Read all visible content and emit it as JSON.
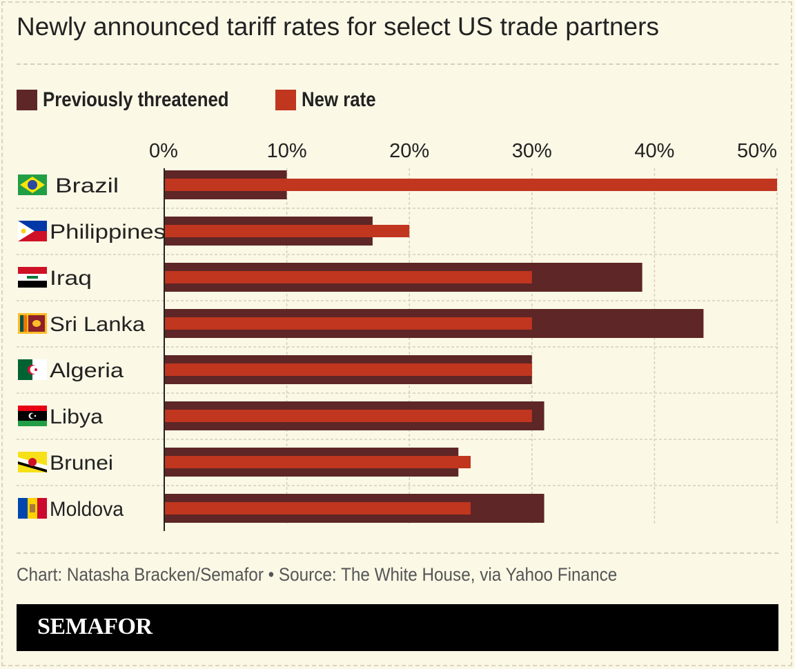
{
  "title": "Newly announced tariff rates for select US trade partners",
  "legend": {
    "previous_label": "Previously threatened",
    "new_label": "New rate"
  },
  "colors": {
    "background": "#fbf8e6",
    "previous": "#5e2626",
    "new": "#c0361f",
    "grid": "#d3cfbb",
    "axis": "#222222"
  },
  "credit": "Chart: Natasha Bracken/Semafor • Source: The White House, via Yahoo Finance",
  "footer": {
    "logo": "SEMAFOR"
  },
  "chart_data": {
    "type": "bar",
    "orientation": "horizontal",
    "title": "Newly announced tariff rates for select US trade partners",
    "xlabel": "",
    "ylabel": "",
    "xlim": [
      0,
      50
    ],
    "x_ticks": [
      "0%",
      "10%",
      "20%",
      "30%",
      "40%",
      "50%"
    ],
    "grid": "vertical dashed",
    "legend_position": "top-left",
    "categories": [
      "Brazil",
      "Philippines",
      "Iraq",
      "Sri Lanka",
      "Algeria",
      "Libya",
      "Brunei",
      "Moldova"
    ],
    "flags": [
      "brazil-flag-icon",
      "philippines-flag-icon",
      "iraq-flag-icon",
      "sri-lanka-flag-icon",
      "algeria-flag-icon",
      "libya-flag-icon",
      "brunei-flag-icon",
      "moldova-flag-icon"
    ],
    "series": [
      {
        "name": "Previously threatened",
        "values": [
          10,
          17,
          39,
          44,
          30,
          31,
          24,
          31
        ]
      },
      {
        "name": "New rate",
        "values": [
          50,
          20,
          30,
          30,
          30,
          30,
          25,
          25
        ]
      }
    ]
  }
}
